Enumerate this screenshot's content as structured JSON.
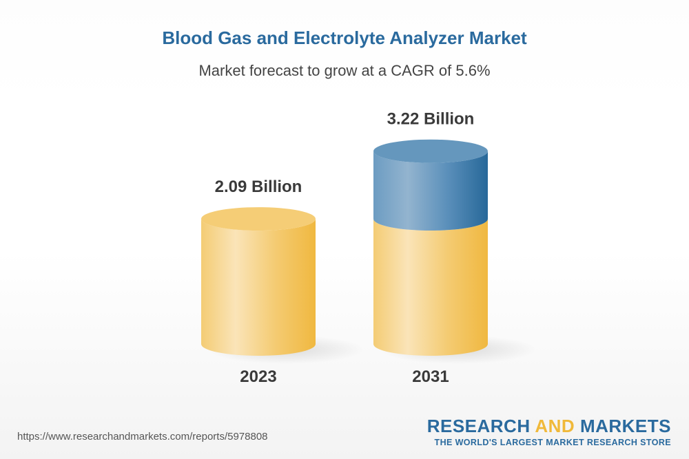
{
  "chart_data": {
    "type": "bar",
    "style": "3d-cylinder",
    "title": "Blood Gas and Electrolyte Analyzer Market",
    "subtitle": "Market forecast to grow at a CAGR of 5.6%",
    "categories": [
      "2023",
      "2031"
    ],
    "values": [
      2.09,
      3.22
    ],
    "data_labels": [
      "2.09 Billion",
      "3.22 Billion"
    ],
    "unit": "Billion",
    "colors": {
      "base": "#f2c25a",
      "growth": "#2a6a9e"
    }
  },
  "footer": {
    "url": "https://www.researchandmarkets.com/reports/5978808",
    "logo": {
      "part1": "RESEARCH ",
      "part2": "AND",
      "part3": " MARKETS",
      "tagline": "THE WORLD'S LARGEST MARKET RESEARCH STORE"
    }
  }
}
